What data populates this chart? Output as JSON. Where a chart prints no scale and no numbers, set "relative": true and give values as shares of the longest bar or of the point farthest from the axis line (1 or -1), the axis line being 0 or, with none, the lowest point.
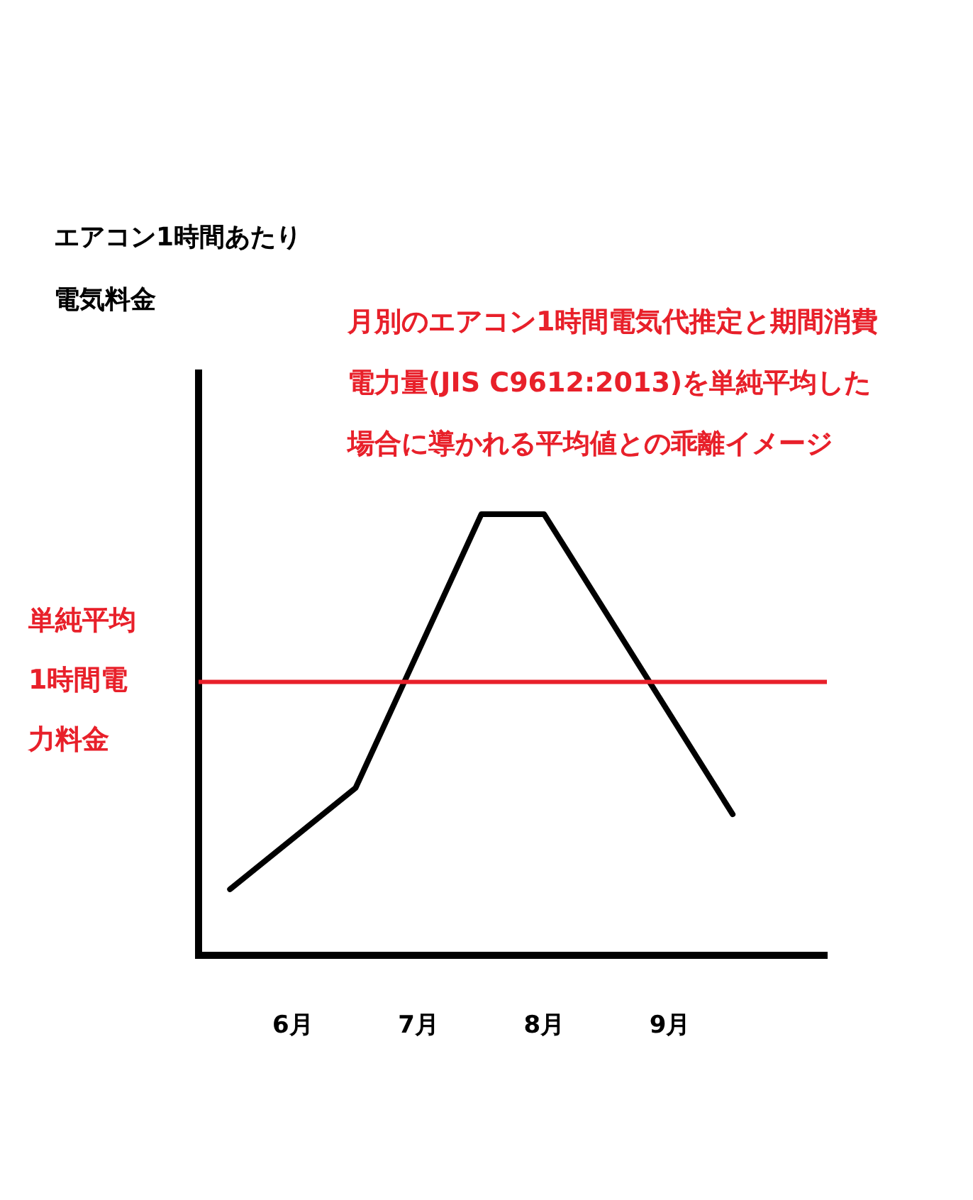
{
  "chart_data": {
    "type": "line",
    "relative": true,
    "ylabel": "エアコン1時間あたり電気料金",
    "annotations": [
      "月別のエアコン1時間電気代推定と期間消費電力量(JIS C9612:2013)を単純平均した場合に導かれる平均値との乖離イメージ"
    ],
    "categories": [
      null,
      "6月",
      null,
      "7月",
      null,
      "8月",
      null,
      "9月",
      null,
      null
    ],
    "series": [
      {
        "color": "#000000",
        "values": [
          0.15,
          null,
          0.38,
          null,
          1,
          1,
          null,
          null,
          0.32,
          null
        ]
      }
    ],
    "ref_lines": [
      {
        "axis": "y",
        "value": 0.62,
        "label": "単純平均1時間電力料金",
        "color": "#e8202a"
      }
    ],
    "grid": false,
    "legend": false,
    "marker": "none"
  }
}
